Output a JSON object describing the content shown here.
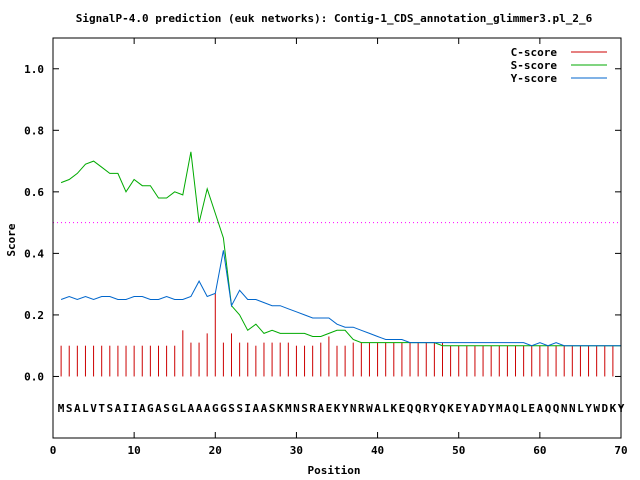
{
  "chart_data": {
    "type": "line",
    "title": "SignalP-4.0 prediction (euk networks): Contig-1_CDS_annotation_glimmer3.pl_2_6",
    "xlabel": "Position",
    "ylabel": "Score",
    "xlim": [
      0,
      70
    ],
    "ylim": [
      -0.2,
      1.1
    ],
    "xticks": [
      0,
      10,
      20,
      30,
      40,
      50,
      60,
      70
    ],
    "yticks": [
      0.0,
      0.2,
      0.4,
      0.6,
      0.8,
      1.0
    ],
    "xtick_labels": [
      "0",
      "10",
      "20",
      "30",
      "40",
      "50",
      "60",
      "70"
    ],
    "ytick_labels": [
      "0.0",
      "0.2",
      "0.4",
      "0.6",
      "0.8",
      "1.0"
    ],
    "threshold": 0.5,
    "threshold_color": "#ff00ff",
    "legend_position": "top-right",
    "sequence": "MSALVTSAIIAGASGLAAAGGSSIAASKMNSRAEKYNRWALKEQQRYQKEYADYMAQLEAQQNNLYWDKY",
    "series": [
      {
        "name": "C-score",
        "style": "impulses",
        "color": "#cc0000",
        "values": [
          0.1,
          0.1,
          0.1,
          0.1,
          0.1,
          0.1,
          0.1,
          0.1,
          0.1,
          0.1,
          0.1,
          0.1,
          0.1,
          0.1,
          0.1,
          0.15,
          0.11,
          0.11,
          0.14,
          0.27,
          0.11,
          0.14,
          0.11,
          0.11,
          0.1,
          0.11,
          0.11,
          0.11,
          0.11,
          0.1,
          0.1,
          0.1,
          0.11,
          0.13,
          0.1,
          0.1,
          0.11,
          0.11,
          0.11,
          0.11,
          0.11,
          0.11,
          0.11,
          0.11,
          0.11,
          0.11,
          0.11,
          0.11,
          0.1,
          0.1,
          0.1,
          0.1,
          0.1,
          0.1,
          0.1,
          0.1,
          0.1,
          0.1,
          0.1,
          0.1,
          0.1,
          0.1,
          0.1,
          0.1,
          0.1,
          0.1,
          0.1,
          0.1,
          0.1,
          0.1
        ]
      },
      {
        "name": "S-score",
        "style": "line",
        "color": "#00aa00",
        "values": [
          0.63,
          0.64,
          0.66,
          0.69,
          0.7,
          0.68,
          0.66,
          0.66,
          0.6,
          0.64,
          0.62,
          0.62,
          0.58,
          0.58,
          0.6,
          0.59,
          0.73,
          0.5,
          0.61,
          0.53,
          0.45,
          0.23,
          0.2,
          0.15,
          0.17,
          0.14,
          0.15,
          0.14,
          0.14,
          0.14,
          0.14,
          0.13,
          0.13,
          0.14,
          0.15,
          0.15,
          0.12,
          0.11,
          0.11,
          0.11,
          0.11,
          0.11,
          0.11,
          0.11,
          0.11,
          0.11,
          0.11,
          0.1,
          0.1,
          0.1,
          0.1,
          0.1,
          0.1,
          0.1,
          0.1,
          0.1,
          0.1,
          0.1,
          0.1,
          0.1,
          0.1,
          0.1,
          0.1,
          0.1,
          0.1,
          0.1,
          0.1,
          0.1,
          0.1,
          0.1
        ]
      },
      {
        "name": "Y-score",
        "style": "line",
        "color": "#0066cc",
        "values": [
          0.25,
          0.26,
          0.25,
          0.26,
          0.25,
          0.26,
          0.26,
          0.25,
          0.25,
          0.26,
          0.26,
          0.25,
          0.25,
          0.26,
          0.25,
          0.25,
          0.26,
          0.31,
          0.26,
          0.27,
          0.41,
          0.23,
          0.28,
          0.25,
          0.25,
          0.24,
          0.23,
          0.23,
          0.22,
          0.21,
          0.2,
          0.19,
          0.19,
          0.19,
          0.17,
          0.16,
          0.16,
          0.15,
          0.14,
          0.13,
          0.12,
          0.12,
          0.12,
          0.11,
          0.11,
          0.11,
          0.11,
          0.11,
          0.11,
          0.11,
          0.11,
          0.11,
          0.11,
          0.11,
          0.11,
          0.11,
          0.11,
          0.11,
          0.1,
          0.11,
          0.1,
          0.11,
          0.1,
          0.1,
          0.1,
          0.1,
          0.1,
          0.1,
          0.1,
          0.1
        ]
      }
    ]
  }
}
